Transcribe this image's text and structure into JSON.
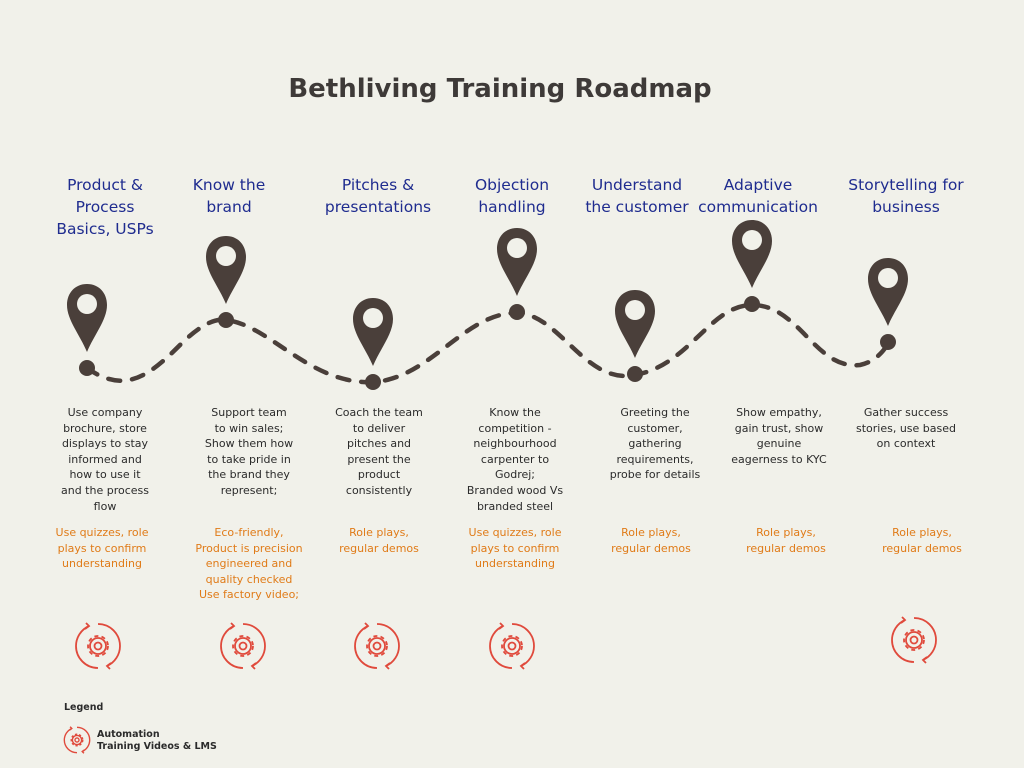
{
  "title": "Bethliving Training Roadmap",
  "colors": {
    "background": "#f1f1ea",
    "pin": "#4a3f3a",
    "title_text": "#3e3a38",
    "step_title": "#1f2c8f",
    "method_text": "#e07b18",
    "icon": "#e04a3c"
  },
  "steps": [
    {
      "title": "Product &\nProcess\nBasics, USPs",
      "description": "Use company\nbrochure, store\ndisplays to stay\ninformed and\nhow to use it\nand the process\nflow",
      "method": "Use quizzes, role\nplays to confirm\nunderstanding",
      "automation_icon": true
    },
    {
      "title": "Know the\nbrand",
      "description": "Support team\nto win sales;\nShow them how\nto take pride in\nthe brand they\nrepresent;",
      "method": "Eco-friendly,\nProduct is precision\nengineered  and\nquality checked\nUse factory video;",
      "automation_icon": true
    },
    {
      "title": "Pitches &\npresentations",
      "description": "Coach the team\nto deliver\npitches and\npresent the\nproduct\nconsistently",
      "method": "Role plays,\nregular demos",
      "automation_icon": true
    },
    {
      "title": "Objection\nhandling",
      "description": "Know the\ncompetition -\nneighbourhood\ncarpenter to\nGodrej;\nBranded wood Vs\nbranded steel",
      "method": "Use quizzes, role\nplays to confirm\nunderstanding",
      "automation_icon": true
    },
    {
      "title": "Understand\nthe customer",
      "description": "Greeting the\ncustomer,\ngathering\nrequirements,\nprobe for details",
      "method": "Role plays,\nregular demos",
      "automation_icon": false
    },
    {
      "title": "Adaptive\ncommunication",
      "description": "Show empathy,\ngain trust, show\ngenuine\neagerness to KYC",
      "method": "Role plays,\nregular demos",
      "automation_icon": false
    },
    {
      "title": "Storytelling for\nbusiness",
      "description": "Gather success\nstories, use based\non context",
      "method": "Role plays,\nregular demos",
      "automation_icon": true
    }
  ],
  "legend": {
    "title": "Legend",
    "items": [
      {
        "icon": "automation-gear-icon",
        "label": "Automation\nTraining Videos & LMS"
      }
    ]
  }
}
